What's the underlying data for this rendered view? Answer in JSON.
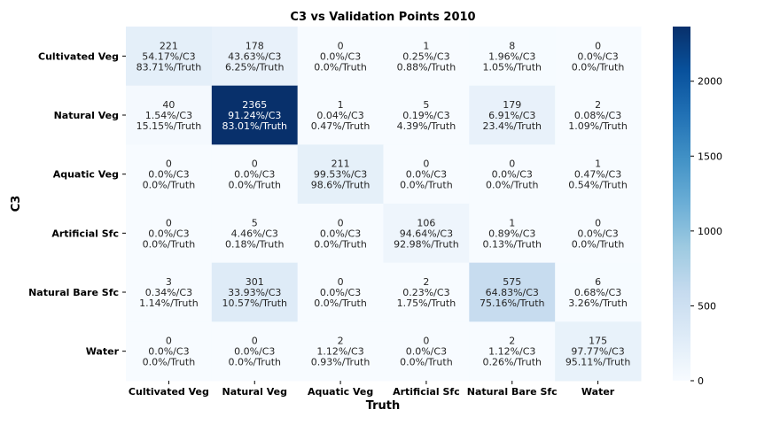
{
  "chart_data": {
    "type": "heatmap",
    "title": "C3 vs Validation Points 2010",
    "xlabel": "Truth",
    "ylabel": "C3",
    "x_categories": [
      "Cultivated Veg",
      "Natural Veg",
      "Aquatic Veg",
      "Artificial Sfc",
      "Natural Bare Sfc",
      "Water"
    ],
    "y_categories": [
      "Cultivated Veg",
      "Natural Veg",
      "Aquatic Veg",
      "Artificial Sfc",
      "Natural Bare Sfc",
      "Water"
    ],
    "values": [
      [
        221,
        178,
        0,
        1,
        8,
        0
      ],
      [
        40,
        2365,
        1,
        5,
        179,
        2
      ],
      [
        0,
        0,
        211,
        0,
        0,
        1
      ],
      [
        0,
        5,
        0,
        106,
        1,
        0
      ],
      [
        3,
        301,
        0,
        2,
        575,
        6
      ],
      [
        0,
        0,
        2,
        0,
        2,
        175
      ]
    ],
    "cell_labels": [
      [
        [
          "221",
          "54.17%/C3",
          "83.71%/Truth"
        ],
        [
          "178",
          "43.63%/C3",
          "6.25%/Truth"
        ],
        [
          "0",
          "0.0%/C3",
          "0.0%/Truth"
        ],
        [
          "1",
          "0.25%/C3",
          "0.88%/Truth"
        ],
        [
          "8",
          "1.96%/C3",
          "1.05%/Truth"
        ],
        [
          "0",
          "0.0%/C3",
          "0.0%/Truth"
        ]
      ],
      [
        [
          "40",
          "1.54%/C3",
          "15.15%/Truth"
        ],
        [
          "2365",
          "91.24%/C3",
          "83.01%/Truth"
        ],
        [
          "1",
          "0.04%/C3",
          "0.47%/Truth"
        ],
        [
          "5",
          "0.19%/C3",
          "4.39%/Truth"
        ],
        [
          "179",
          "6.91%/C3",
          "23.4%/Truth"
        ],
        [
          "2",
          "0.08%/C3",
          "1.09%/Truth"
        ]
      ],
      [
        [
          "0",
          "0.0%/C3",
          "0.0%/Truth"
        ],
        [
          "0",
          "0.0%/C3",
          "0.0%/Truth"
        ],
        [
          "211",
          "99.53%/C3",
          "98.6%/Truth"
        ],
        [
          "0",
          "0.0%/C3",
          "0.0%/Truth"
        ],
        [
          "0",
          "0.0%/C3",
          "0.0%/Truth"
        ],
        [
          "1",
          "0.47%/C3",
          "0.54%/Truth"
        ]
      ],
      [
        [
          "0",
          "0.0%/C3",
          "0.0%/Truth"
        ],
        [
          "5",
          "4.46%/C3",
          "0.18%/Truth"
        ],
        [
          "0",
          "0.0%/C3",
          "0.0%/Truth"
        ],
        [
          "106",
          "94.64%/C3",
          "92.98%/Truth"
        ],
        [
          "1",
          "0.89%/C3",
          "0.13%/Truth"
        ],
        [
          "0",
          "0.0%/C3",
          "0.0%/Truth"
        ]
      ],
      [
        [
          "3",
          "0.34%/C3",
          "1.14%/Truth"
        ],
        [
          "301",
          "33.93%/C3",
          "10.57%/Truth"
        ],
        [
          "0",
          "0.0%/C3",
          "0.0%/Truth"
        ],
        [
          "2",
          "0.23%/C3",
          "1.75%/Truth"
        ],
        [
          "575",
          "64.83%/C3",
          "75.16%/Truth"
        ],
        [
          "6",
          "0.68%/C3",
          "3.26%/Truth"
        ]
      ],
      [
        [
          "0",
          "0.0%/C3",
          "0.0%/Truth"
        ],
        [
          "0",
          "0.0%/C3",
          "0.0%/Truth"
        ],
        [
          "2",
          "1.12%/C3",
          "0.93%/Truth"
        ],
        [
          "0",
          "0.0%/C3",
          "0.0%/Truth"
        ],
        [
          "2",
          "1.12%/C3",
          "0.26%/Truth"
        ],
        [
          "175",
          "97.77%/C3",
          "95.11%/Truth"
        ]
      ]
    ],
    "colormap": "Blues",
    "colorbar": {
      "range": [
        0,
        2365
      ],
      "ticks": [
        0,
        500,
        1000,
        1500,
        2000
      ],
      "tick_labels": [
        "0",
        "500",
        "1000",
        "1500",
        "2000"
      ]
    },
    "colors": {
      "low": "#f7fbff",
      "high": "#08306b",
      "text_dark": "#262626",
      "text_light": "#ffffff"
    }
  }
}
